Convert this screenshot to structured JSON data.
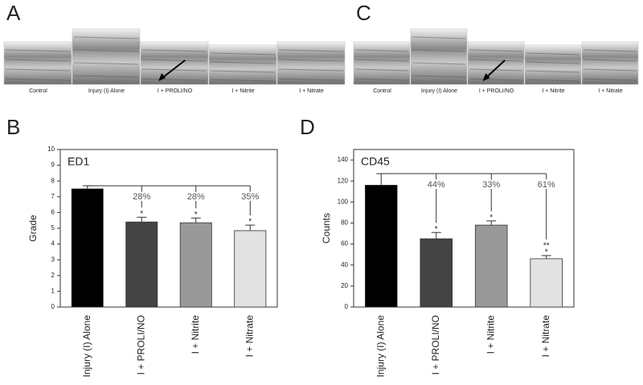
{
  "image_panels": [
    {
      "panel_label": "A",
      "captions": [
        "Control",
        "Injury (I) Alone",
        "I + PROLI/NO",
        "I + Nitrite",
        "I + Nitrate"
      ]
    },
    {
      "panel_label": "C",
      "captions": [
        "Control",
        "Injury (I) Alone",
        "I + PROLI/NO",
        "I + Nitrite",
        "I + Nitrate"
      ]
    }
  ],
  "chart_data": [
    {
      "type": "bar",
      "panel_label": "B",
      "title": "ED1",
      "y_label": "Grade",
      "categories": [
        "Injury (I) Alone",
        "I + PROLI/NO",
        "I + Nitrite",
        "I + Nitrate"
      ],
      "values": [
        7.5,
        5.4,
        5.35,
        4.85
      ],
      "errors": [
        0.2,
        0.3,
        0.3,
        0.35
      ],
      "colors": [
        "#000000",
        "#444444",
        "#999999",
        "#e2e2e2"
      ],
      "annotations": [
        null,
        "28%",
        "28%",
        "35%"
      ],
      "significance": [
        [],
        [
          "*"
        ],
        [
          "*"
        ],
        [
          "*"
        ]
      ],
      "ylim": [
        0,
        10
      ],
      "yticks": [
        0,
        1,
        2,
        3,
        4,
        5,
        6,
        7,
        8,
        9,
        10
      ]
    },
    {
      "type": "bar",
      "panel_label": "D",
      "title": "CD45",
      "y_label": "Counts",
      "categories": [
        "Injury (I) Alone",
        "I + PROLI/NO",
        "I + Nitrite",
        "I + Nitrate"
      ],
      "values": [
        116,
        65,
        78,
        46
      ],
      "errors": [
        11,
        6,
        4,
        3
      ],
      "colors": [
        "#000000",
        "#444444",
        "#999999",
        "#e2e2e2"
      ],
      "annotations": [
        null,
        "44%",
        "33%",
        "61%"
      ],
      "significance": [
        [],
        [
          "*"
        ],
        [
          "*"
        ],
        [
          "**",
          "*"
        ]
      ],
      "ylim": [
        0,
        150
      ],
      "yticks": [
        0,
        20,
        40,
        60,
        80,
        100,
        120,
        140
      ]
    }
  ]
}
